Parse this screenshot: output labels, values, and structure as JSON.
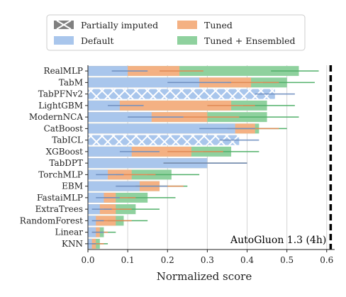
{
  "chart_data": {
    "type": "bar",
    "orientation": "horizontal",
    "xlabel": "Normalized score",
    "xlim": [
      0.0,
      0.62
    ],
    "xticks": [
      "0.0",
      "0.1",
      "0.2",
      "0.3",
      "0.4",
      "0.5",
      "0.6"
    ],
    "grid": true,
    "legend_placement": "top",
    "legend": [
      {
        "key": "imputed",
        "label": "Partially imputed",
        "color": "#808080"
      },
      {
        "key": "tuned",
        "label": "Tuned",
        "color": "#f4b183"
      },
      {
        "key": "default",
        "label": "Default",
        "color": "#a9c6ec"
      },
      {
        "key": "ensembled",
        "label": "Tuned + Ensembled",
        "color": "#8fd19e"
      }
    ],
    "categories": [
      "RealMLP",
      "TabM",
      "TabPFNv2",
      "LightGBM",
      "ModernNCA",
      "CatBoost",
      "TabICL",
      "XGBoost",
      "TabDPT",
      "TorchMLP",
      "EBM",
      "FastaiMLP",
      "ExtraTrees",
      "RandomForest",
      "Linear",
      "KNN"
    ],
    "imputed": [
      false,
      false,
      true,
      false,
      false,
      false,
      true,
      false,
      false,
      false,
      false,
      false,
      false,
      false,
      false,
      false
    ],
    "series": [
      {
        "name": "Default",
        "key": "default",
        "values": [
          0.1,
          0.28,
          0.47,
          0.08,
          0.16,
          0.37,
          0.38,
          0.11,
          0.3,
          0.05,
          0.13,
          0.04,
          0.03,
          0.02,
          0.02,
          0.01
        ],
        "err": [
          [
            0.06,
            0.15
          ],
          [
            0.2,
            0.36
          ],
          [
            0.42,
            0.52
          ],
          [
            0.05,
            0.14
          ],
          [
            0.1,
            0.24
          ],
          [
            0.28,
            0.42
          ],
          [
            0.33,
            0.43
          ],
          [
            0.08,
            0.18
          ],
          [
            0.19,
            0.4
          ],
          [
            0.02,
            0.09
          ],
          [
            0.07,
            0.2
          ],
          [
            0.02,
            0.08
          ],
          [
            0.01,
            0.06
          ],
          [
            0.01,
            0.04
          ],
          [
            0.01,
            0.04
          ],
          [
            0.0,
            0.02
          ]
        ]
      },
      {
        "name": "Tuned",
        "key": "tuned",
        "values": [
          0.23,
          0.41,
          0.47,
          0.36,
          0.3,
          0.42,
          0.38,
          0.26,
          0.3,
          0.11,
          0.18,
          0.07,
          0.07,
          0.07,
          0.03,
          0.02
        ],
        "err": [
          [
            0.18,
            0.29
          ],
          [
            0.35,
            0.48
          ],
          [
            0.42,
            0.52
          ],
          [
            0.3,
            0.42
          ],
          [
            0.24,
            0.38
          ],
          [
            0.35,
            0.48
          ],
          [
            0.33,
            0.43
          ],
          [
            0.2,
            0.34
          ],
          [
            0.19,
            0.4
          ],
          [
            0.07,
            0.17
          ],
          [
            0.12,
            0.24
          ],
          [
            0.04,
            0.12
          ],
          [
            0.04,
            0.11
          ],
          [
            0.03,
            0.11
          ],
          [
            0.01,
            0.05
          ],
          [
            0.01,
            0.04
          ]
        ]
      },
      {
        "name": "Tuned + Ensembled",
        "key": "ensembled",
        "values": [
          0.53,
          0.5,
          0.47,
          0.45,
          0.45,
          0.43,
          0.38,
          0.36,
          0.3,
          0.21,
          0.18,
          0.15,
          0.12,
          0.09,
          0.04,
          0.03
        ],
        "err": [
          [
            0.46,
            0.58
          ],
          [
            0.44,
            0.57
          ],
          [
            0.42,
            0.52
          ],
          [
            0.39,
            0.52
          ],
          [
            0.38,
            0.53
          ],
          [
            0.37,
            0.5
          ],
          [
            0.33,
            0.43
          ],
          [
            0.29,
            0.43
          ],
          [
            0.19,
            0.4
          ],
          [
            0.15,
            0.28
          ],
          [
            0.12,
            0.25
          ],
          [
            0.1,
            0.22
          ],
          [
            0.08,
            0.18
          ],
          [
            0.05,
            0.15
          ],
          [
            0.02,
            0.07
          ],
          [
            0.01,
            0.05
          ]
        ]
      }
    ],
    "reference_line": {
      "label": "AutoGluon 1.3 (4h)",
      "value": 0.61,
      "style": "dashed",
      "color": "#000000"
    }
  }
}
